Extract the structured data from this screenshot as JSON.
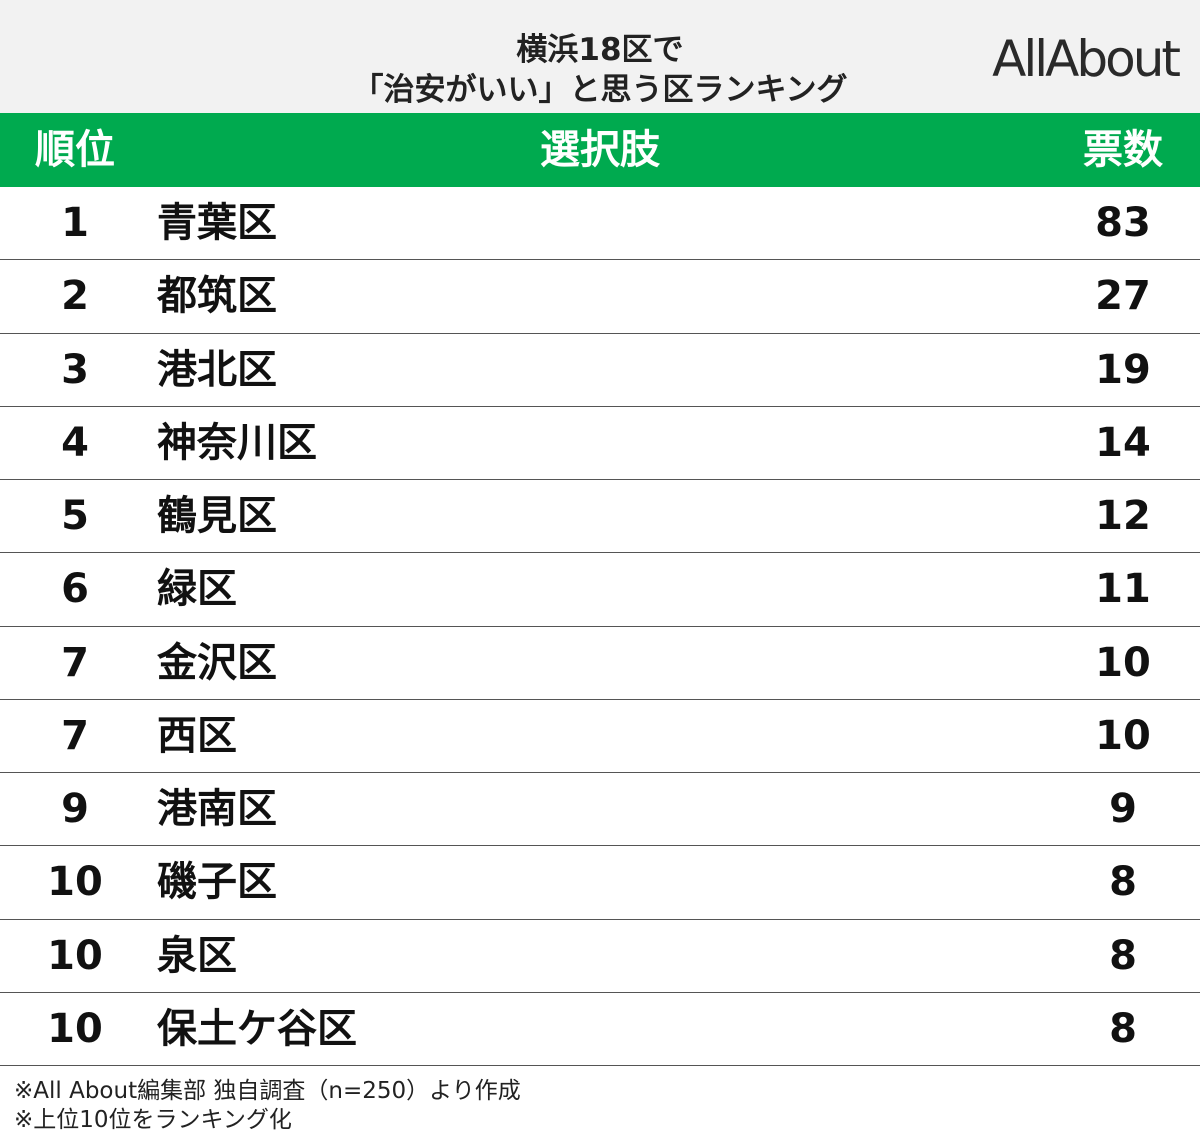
{
  "header": {
    "title": [
      "横浜18区で",
      "「治安がいい」と思う区ランキング"
    ],
    "logo": "AllAbout"
  },
  "table": {
    "columns": [
      "順位",
      "選択肢",
      "票数"
    ],
    "rows": [
      [
        1,
        "青葉区",
        83
      ],
      [
        2,
        "都筑区",
        27
      ],
      [
        3,
        "港北区",
        19
      ],
      [
        4,
        "神奈川区",
        14
      ],
      [
        5,
        "鶴見区",
        12
      ],
      [
        6,
        "緑区",
        11
      ],
      [
        7,
        "金沢区",
        10
      ],
      [
        7,
        "西区",
        10
      ],
      [
        9,
        "港南区",
        9
      ],
      [
        10,
        "磯子区",
        8
      ],
      [
        10,
        "泉区",
        8
      ],
      [
        10,
        "保土ケ谷区",
        8
      ]
    ]
  },
  "footnotes": [
    "※All About編集部 独自調査（n=250）より作成",
    "※上位10位をランキング化"
  ]
}
